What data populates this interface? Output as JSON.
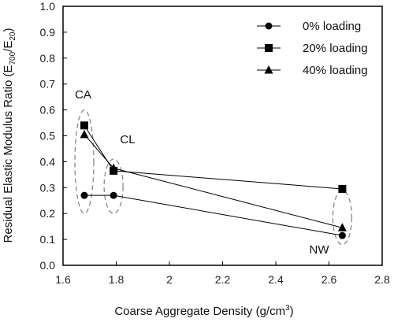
{
  "chart_data": {
    "type": "line",
    "xlabel": "Coarse Aggregate Density (g/cm",
    "xlabel_sup": "3",
    "xlabel_close": ")",
    "ylabel": "Residual Elastic Modulus Ratio (E",
    "ylabel_sub1": "700",
    "ylabel_mid": "/E",
    "ylabel_sub2": "20",
    "ylabel_close": ")",
    "xlim": [
      1.6,
      2.8
    ],
    "ylim": [
      0.0,
      1.0
    ],
    "x_ticks": [
      "1.6",
      "1.8",
      "2",
      "2.2",
      "2.4",
      "2.6",
      "2.8"
    ],
    "x_tick_values": [
      1.6,
      1.8,
      2.0,
      2.2,
      2.4,
      2.6,
      2.8
    ],
    "y_ticks": [
      "0.0",
      "0.1",
      "0.2",
      "0.3",
      "0.4",
      "0.5",
      "0.6",
      "0.7",
      "0.8",
      "0.9",
      "1.0"
    ],
    "y_tick_values": [
      0.0,
      0.1,
      0.2,
      0.3,
      0.4,
      0.5,
      0.6,
      0.7,
      0.8,
      0.9,
      1.0
    ],
    "grid": false,
    "legend_position": "top-right",
    "series": [
      {
        "name": "0% loading",
        "marker": "circle",
        "x": [
          1.68,
          1.79,
          2.65
        ],
        "y": [
          0.27,
          0.27,
          0.115
        ]
      },
      {
        "name": "20% loading",
        "marker": "square",
        "x": [
          1.68,
          1.79,
          2.65
        ],
        "y": [
          0.54,
          0.365,
          0.295
        ]
      },
      {
        "name": "40% loading",
        "marker": "triangle",
        "x": [
          1.68,
          1.79,
          2.65
        ],
        "y": [
          0.505,
          0.375,
          0.145
        ]
      }
    ],
    "groups": [
      {
        "label": "CA",
        "x": 1.68,
        "y_range": [
          0.2,
          0.6
        ]
      },
      {
        "label": "CL",
        "x": 1.79,
        "y_range": [
          0.2,
          0.41
        ]
      },
      {
        "label": "NW",
        "x": 2.65,
        "y_range": [
          0.08,
          0.29
        ]
      }
    ]
  },
  "colors": {
    "line": "#000000",
    "ellipse": "#888888"
  }
}
